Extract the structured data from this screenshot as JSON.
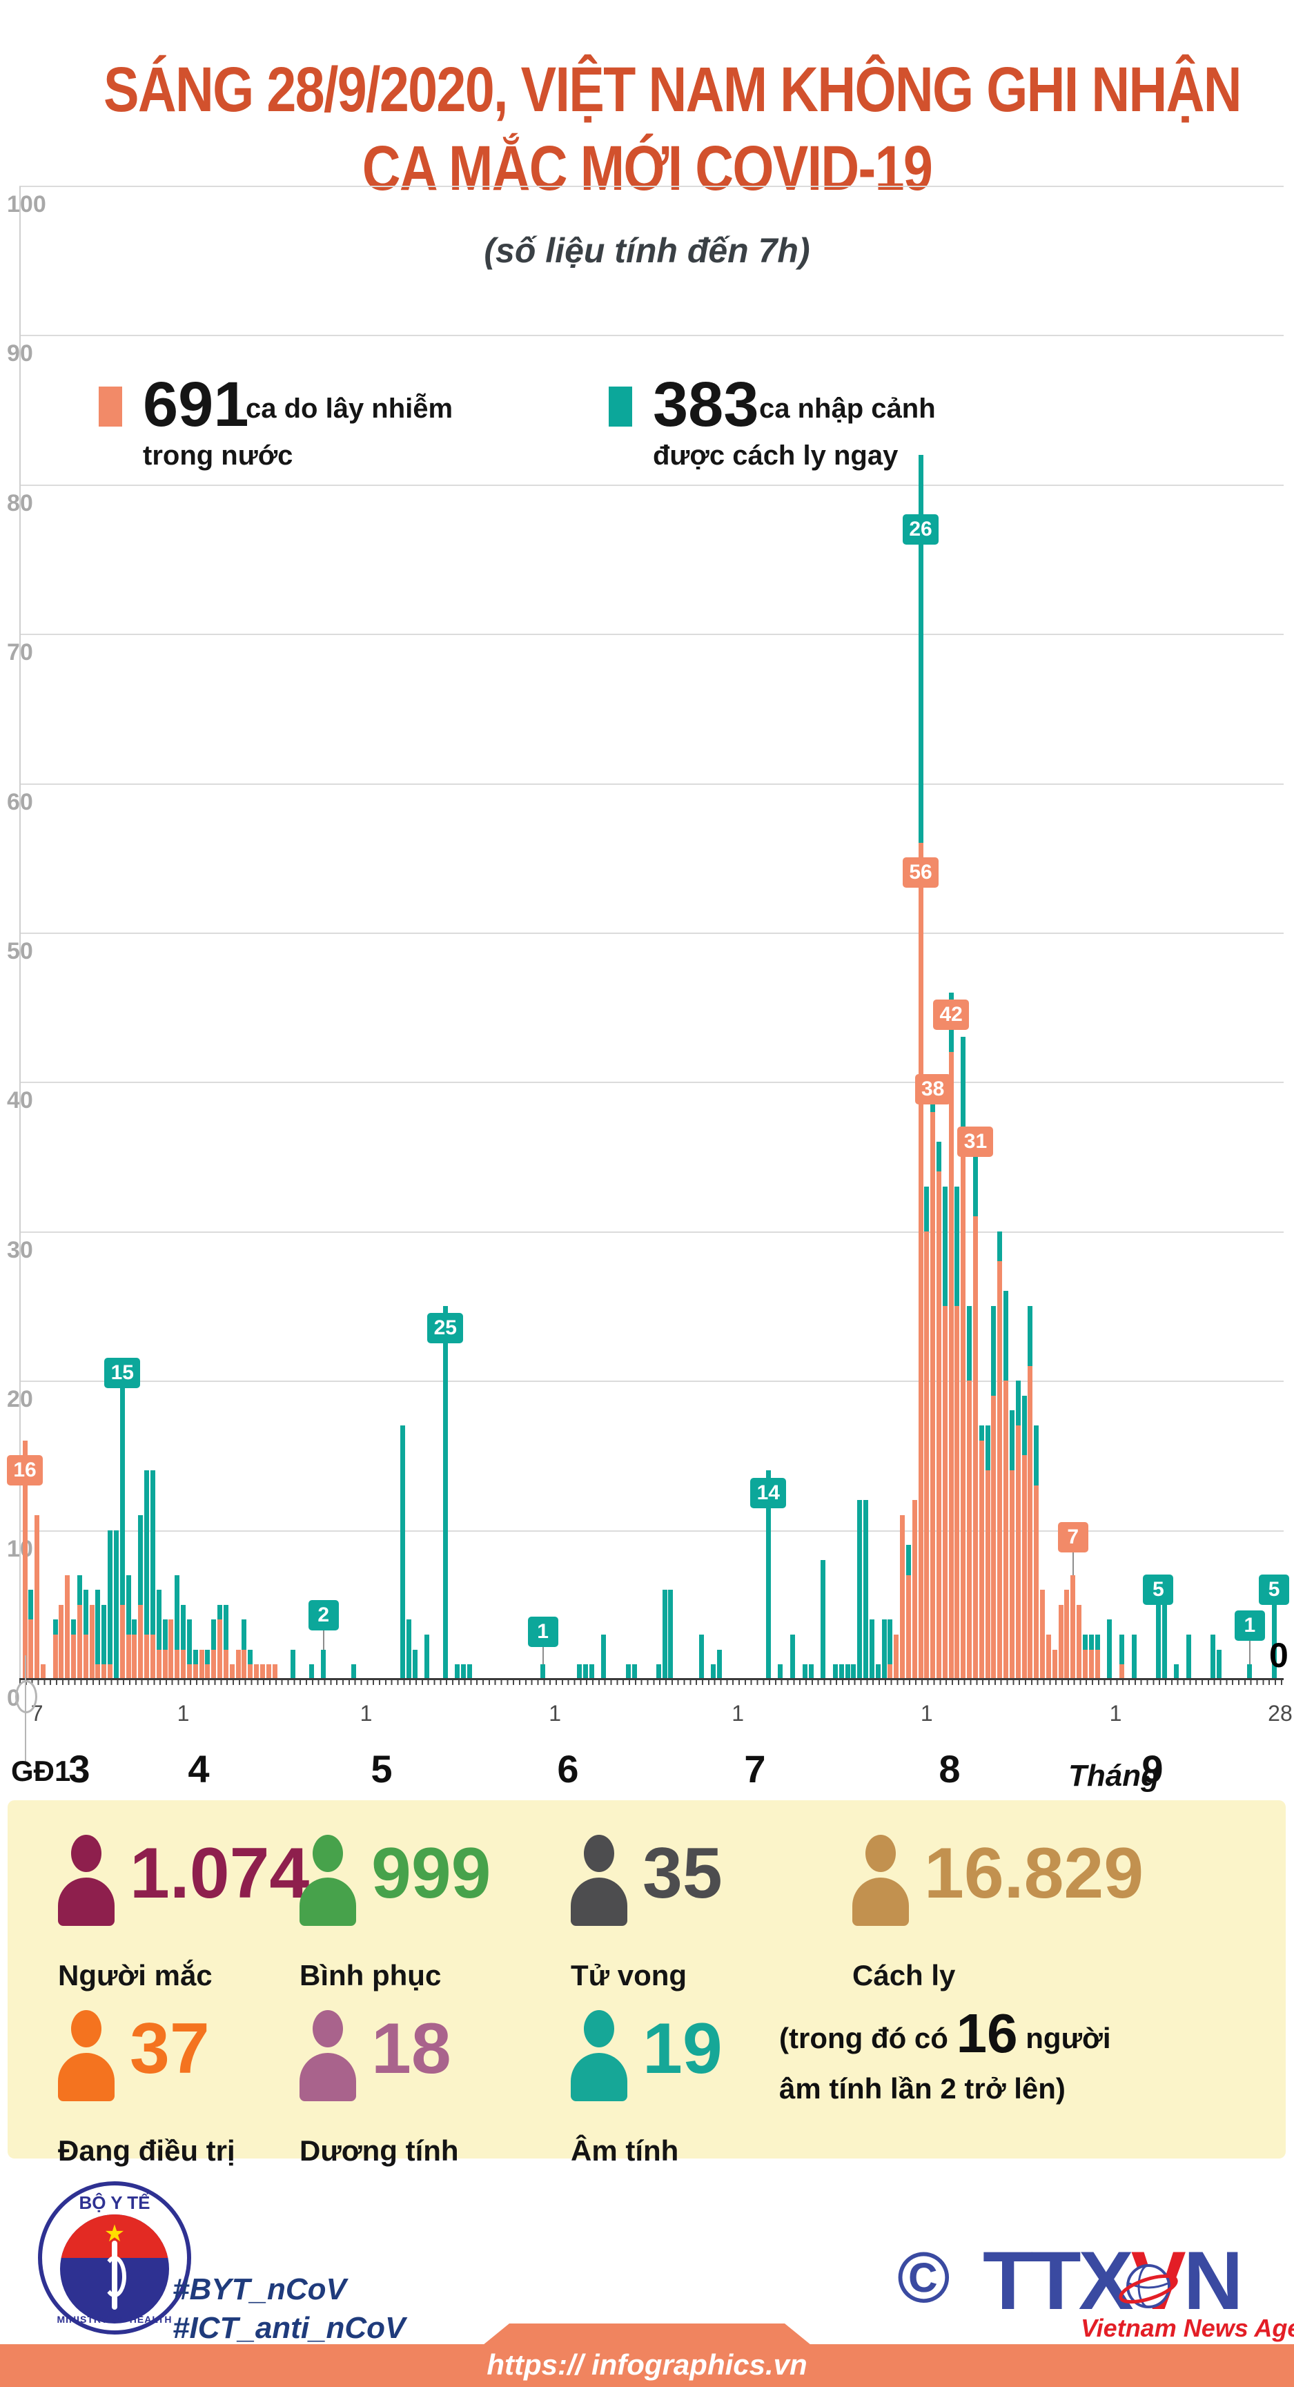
{
  "title": {
    "line1": "SÁNG 28/9/2020, VIỆT NAM KHÔNG GHI NHẬN",
    "line2": "CA MẮC MỚI COVID-19"
  },
  "subtitle": "(số liệu tính đến 7h)",
  "legend": [
    {
      "value": "691",
      "text1": "ca do lây nhiễm",
      "text2": "trong nước",
      "color": "#F28A68"
    },
    {
      "value": "383",
      "text1": "ca nhập cảnh",
      "text2": "được cách ly ngay",
      "color": "#0CA79A"
    }
  ],
  "colors": {
    "domestic": "#F28A68",
    "imported": "#0CA79A",
    "title_red": "#D2512D",
    "panel_yellow": "#FBF4C9",
    "footer_orange": "#F0845F",
    "navy": "#2E3192",
    "agency_red": "#E31E26"
  },
  "chart_data": {
    "type": "bar",
    "stacked": true,
    "ylim": [
      0,
      100
    ],
    "ytick_step": 10,
    "grid": true,
    "legend_position": "top",
    "x_description": "daily cases from 6/3/2020 to 28/9/2020, month numbers 3-9 below axis",
    "phase_label": "GĐ1",
    "month_word": "Tháng",
    "series": [
      {
        "name": "ca do lây nhiễm trong nước",
        "color": "#F28A68",
        "values": [
          16,
          4,
          11,
          1,
          0,
          3,
          5,
          7,
          3,
          5,
          3,
          5,
          1,
          1,
          1,
          0,
          5,
          3,
          3,
          5,
          3,
          3,
          2,
          2,
          4,
          2,
          2,
          1,
          1,
          2,
          1,
          2,
          4,
          2,
          1,
          2,
          2,
          1,
          1,
          1,
          1,
          1,
          0,
          0,
          0,
          0,
          0,
          0,
          0,
          0,
          0,
          0,
          0,
          0,
          0,
          0,
          0,
          0,
          0,
          0,
          0,
          0,
          0,
          0,
          0,
          0,
          0,
          0,
          0,
          0,
          0,
          0,
          0,
          0,
          0,
          0,
          0,
          0,
          0,
          0,
          0,
          0,
          0,
          0,
          0,
          0,
          0,
          0,
          0,
          0,
          0,
          0,
          0,
          0,
          0,
          0,
          0,
          0,
          0,
          0,
          0,
          0,
          0,
          0,
          0,
          0,
          0,
          0,
          0,
          0,
          0,
          0,
          0,
          0,
          0,
          0,
          0,
          0,
          0,
          0,
          0,
          0,
          0,
          0,
          0,
          0,
          0,
          0,
          0,
          0,
          0,
          0,
          0,
          0,
          0,
          0,
          0,
          0,
          0,
          0,
          0,
          0,
          1,
          3,
          11,
          7,
          12,
          56,
          30,
          38,
          34,
          25,
          42,
          25,
          37,
          20,
          31,
          16,
          14,
          19,
          28,
          20,
          14,
          17,
          15,
          21,
          13,
          6,
          3,
          2,
          5,
          6,
          7,
          5,
          2,
          2,
          2,
          0,
          0,
          0,
          1,
          0,
          0,
          0,
          0,
          0,
          0,
          0,
          0,
          0,
          0,
          0,
          0,
          0,
          0,
          0,
          0,
          0,
          0,
          0,
          0,
          0,
          0,
          0,
          0,
          0,
          0
        ]
      },
      {
        "name": "ca nhập cảnh được cách ly ngay",
        "color": "#0CA79A",
        "values": [
          0,
          2,
          0,
          0,
          0,
          1,
          0,
          0,
          1,
          2,
          3,
          0,
          5,
          4,
          9,
          10,
          15,
          4,
          1,
          6,
          11,
          11,
          4,
          2,
          0,
          5,
          3,
          3,
          1,
          0,
          1,
          2,
          1,
          3,
          0,
          0,
          2,
          1,
          0,
          0,
          0,
          0,
          0,
          0,
          2,
          0,
          0,
          1,
          0,
          2,
          0,
          0,
          0,
          0,
          1,
          0,
          0,
          0,
          0,
          0,
          0,
          0,
          17,
          4,
          2,
          0,
          3,
          0,
          0,
          25,
          0,
          1,
          1,
          1,
          0,
          0,
          0,
          0,
          0,
          0,
          0,
          0,
          0,
          0,
          0,
          1,
          0,
          0,
          0,
          0,
          0,
          1,
          1,
          1,
          0,
          3,
          0,
          0,
          0,
          1,
          1,
          0,
          0,
          0,
          1,
          6,
          6,
          0,
          0,
          0,
          0,
          3,
          0,
          1,
          2,
          0,
          0,
          0,
          0,
          0,
          0,
          0,
          14,
          0,
          1,
          0,
          3,
          0,
          1,
          1,
          0,
          8,
          0,
          1,
          1,
          1,
          1,
          12,
          12,
          4,
          1,
          4,
          3,
          0,
          0,
          2,
          0,
          26,
          3,
          2,
          2,
          8,
          4,
          8,
          6,
          5,
          4,
          1,
          3,
          6,
          2,
          6,
          4,
          3,
          4,
          4,
          4,
          0,
          0,
          0,
          0,
          0,
          0,
          0,
          1,
          1,
          1,
          0,
          4,
          0,
          2,
          0,
          3,
          0,
          0,
          0,
          5,
          5,
          0,
          1,
          0,
          3,
          0,
          0,
          0,
          3,
          2,
          0,
          0,
          0,
          0,
          1,
          0,
          0,
          0,
          5,
          0
        ]
      }
    ],
    "x_ticks": [
      {
        "label": "7",
        "day": 2
      },
      {
        "label": "1",
        "day": 26
      },
      {
        "label": "1",
        "day": 56
      },
      {
        "label": "1",
        "day": 87
      },
      {
        "label": "1",
        "day": 117
      },
      {
        "label": "1",
        "day": 148
      },
      {
        "label": "1",
        "day": 179
      },
      {
        "label": "28",
        "day": 206
      }
    ],
    "month_labels": [
      {
        "label": "3",
        "x": 115
      },
      {
        "label": "4",
        "x": 288
      },
      {
        "label": "5",
        "x": 553
      },
      {
        "label": "6",
        "x": 823
      },
      {
        "label": "7",
        "x": 1094
      },
      {
        "label": "8",
        "x": 1376
      },
      {
        "label": "9",
        "x": 1670
      }
    ],
    "annotations": [
      {
        "day": 0,
        "text": "16",
        "series": "domestic",
        "center_value": 14,
        "stem": false
      },
      {
        "day": 16,
        "text": "15",
        "series": "imported",
        "center_value": 20.5,
        "stem": false
      },
      {
        "day": 49,
        "text": "2",
        "series": "imported",
        "center_value": 4.3,
        "stem": true
      },
      {
        "day": 69,
        "text": "25",
        "series": "imported",
        "center_value": 23.5,
        "stem": false
      },
      {
        "day": 85,
        "text": "1",
        "series": "imported",
        "center_value": 3.2,
        "stem": true
      },
      {
        "day": 122,
        "text": "14",
        "series": "imported",
        "center_value": 12.5,
        "stem": false
      },
      {
        "day": 147,
        "text": "26",
        "series": "imported",
        "center_value": 77,
        "stem": false
      },
      {
        "day": 147,
        "text": "56",
        "series": "domestic",
        "center_value": 54,
        "stem": false
      },
      {
        "day": 149,
        "text": "38",
        "series": "domestic",
        "center_value": 39.5,
        "stem": false
      },
      {
        "day": 152,
        "text": "42",
        "series": "domestic",
        "center_value": 44.5,
        "stem": false
      },
      {
        "day": 156,
        "text": "31",
        "series": "domestic",
        "center_value": 36,
        "stem": false
      },
      {
        "day": 172,
        "text": "7",
        "series": "domestic",
        "center_value": 9.5,
        "stem": true
      },
      {
        "day": 186,
        "text": "5",
        "series": "imported",
        "center_value": 6,
        "stem": false
      },
      {
        "day": 201,
        "text": "1",
        "series": "imported",
        "center_value": 3.6,
        "stem": true
      },
      {
        "day": 205,
        "text": "5",
        "series": "imported",
        "center_value": 6,
        "stem": false
      },
      {
        "day": 206,
        "text": "0",
        "series": "none",
        "center_value": 1.5,
        "stem": false
      }
    ]
  },
  "stats": {
    "row1": [
      {
        "value": "1.074",
        "label": "Người mắc",
        "color": "#8E1F4D"
      },
      {
        "value": "999",
        "label": "Bình phục",
        "color": "#47A24B"
      },
      {
        "value": "35",
        "label": "Tử vong",
        "color": "#4D4D4F"
      },
      {
        "value": "16.829",
        "label": "Cách ly",
        "color": "#C2914F"
      }
    ],
    "row2": [
      {
        "value": "37",
        "label": "Đang điều trị",
        "color": "#F4731F"
      },
      {
        "value": "18",
        "label": "Dương tính",
        "color": "#A9638C"
      },
      {
        "value": "19",
        "label": "Âm tính",
        "color": "#16A797"
      }
    ],
    "note": {
      "prefix": "(trong đó có",
      "big": "16",
      "suffix": "người",
      "line2": "âm tính lần 2 trở lên)"
    }
  },
  "footer": {
    "logo_top": "BỘ Y TẾ",
    "logo_bottom": "MINISTRY OF HEALTH",
    "logo_star": "★",
    "hashtag1": "#BYT_nCoV",
    "hashtag2": "#ICT_anti_nCoV",
    "copyright": "©",
    "abbr_1": "TTX",
    "abbr_2": "V",
    "abbr_3": "N",
    "agency_name": "Vietnam News Agency",
    "url": "https:// infographics.vn"
  }
}
